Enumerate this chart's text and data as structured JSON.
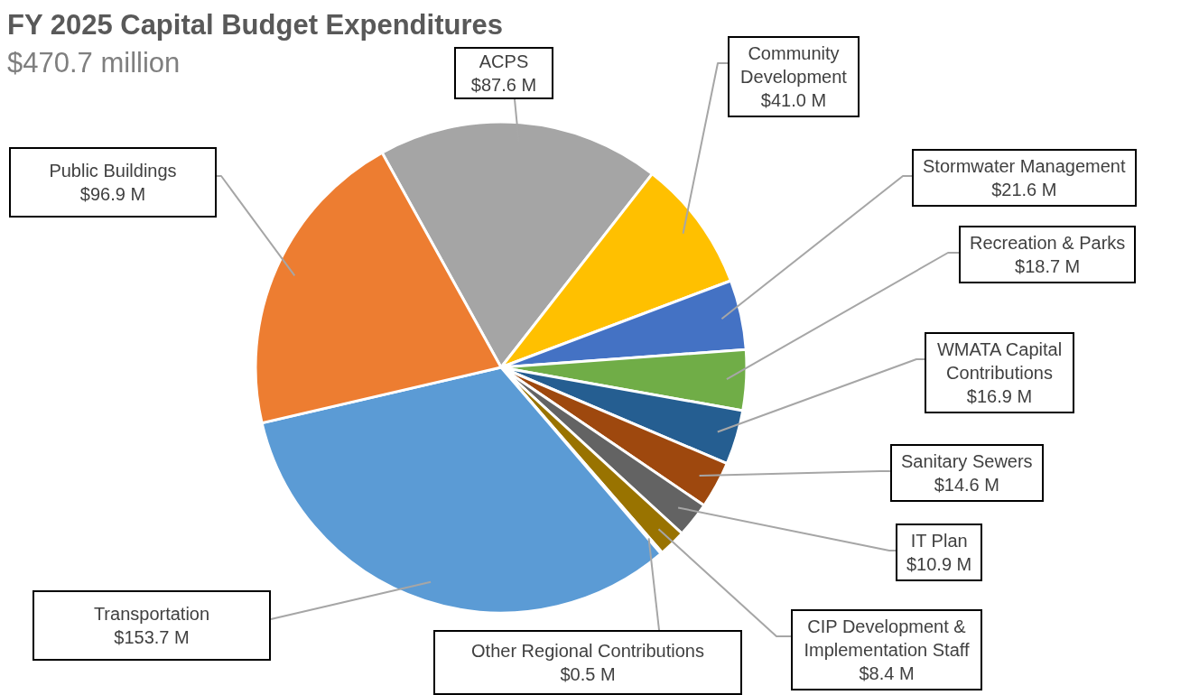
{
  "chart_data": {
    "type": "pie",
    "title": "FY 2025 Capital Budget Expenditures",
    "subtitle": "$470.7 million",
    "categories": [
      "ACPS",
      "Community Development",
      "Stormwater Management",
      "Recreation & Parks",
      "WMATA Capital Contributions",
      "Sanitary Sewers",
      "IT Plan",
      "CIP Development & Implementation Staff",
      "Other Regional Contributions",
      "Transportation",
      "Public Buildings"
    ],
    "values": [
      87.6,
      41.0,
      21.6,
      18.7,
      16.9,
      14.6,
      10.9,
      8.4,
      0.5,
      153.7,
      96.9
    ],
    "value_labels": [
      "$87.6 M",
      "$41.0 M",
      "$21.6 M",
      "$18.7 M",
      "$16.9 M",
      "$14.6 M",
      "$10.9 M",
      "$8.4 M",
      "$0.5 M",
      "$153.7 M",
      "$96.9 M"
    ],
    "colors": [
      "#a5a5a5",
      "#ffc000",
      "#4472c4",
      "#70ad47",
      "#255e91",
      "#9e480e",
      "#636363",
      "#997300",
      "#264478",
      "#5b9bd5",
      "#ed7d31"
    ],
    "legend": false
  }
}
